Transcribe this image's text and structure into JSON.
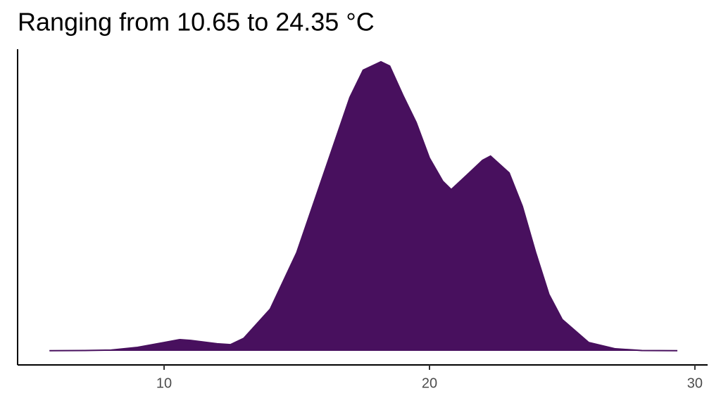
{
  "chart_data": {
    "type": "density",
    "title": "Ranging from 10.65 to 24.35 °C",
    "x": [
      5.68,
      7,
      8,
      9,
      10,
      10.6,
      11,
      12,
      12.5,
      13,
      14,
      15,
      16,
      17,
      17.5,
      18.17,
      18.5,
      19,
      19.5,
      20,
      20.5,
      20.82,
      21.5,
      22,
      22.3,
      23,
      23.5,
      24,
      24.5,
      25,
      26,
      27,
      28,
      29.34
    ],
    "values": [
      0.0001,
      0.0002,
      0.0004,
      0.0017,
      0.004,
      0.0054,
      0.005,
      0.0034,
      0.003,
      0.006,
      0.02,
      0.047,
      0.084,
      0.121,
      0.134,
      0.138,
      0.136,
      0.122,
      0.109,
      0.092,
      0.081,
      0.077,
      0.085,
      0.091,
      0.093,
      0.085,
      0.069,
      0.047,
      0.027,
      0.015,
      0.004,
      0.001,
      0.0002,
      0.0001
    ],
    "color": "#48105e",
    "xlim": [
      4.48,
      30.48
    ],
    "ylim": [
      -0.0067,
      0.144
    ],
    "xticks": [
      10,
      20,
      30
    ]
  }
}
